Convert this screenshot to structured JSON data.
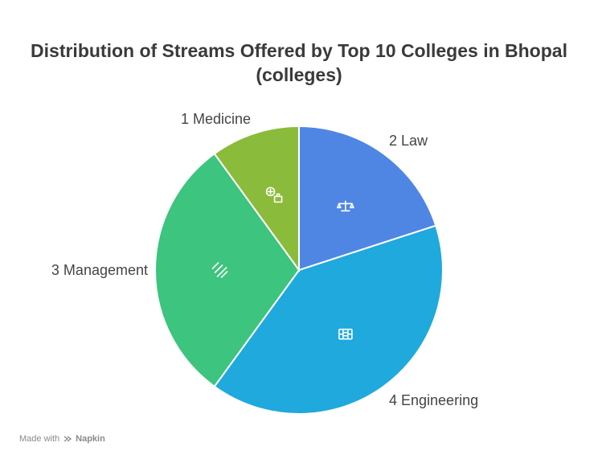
{
  "title_line1": "Distribution of Streams Offered by Top 10 Colleges in Bhopal",
  "title_line2": "(colleges)",
  "footer": {
    "made_with": "Made with",
    "brand": "Napkin"
  },
  "chart_data": {
    "type": "pie",
    "title": "Distribution of Streams Offered by Top 10 Colleges in Bhopal (colleges)",
    "start_angle_deg": 0,
    "direction": "clockwise",
    "slices": [
      {
        "label": "2 Law",
        "value": 2,
        "color": "#4f86e3",
        "icon": "scales-icon"
      },
      {
        "label": "4 Engineering",
        "value": 4,
        "color": "#1fa9dc",
        "icon": "engineering-icon"
      },
      {
        "label": "3 Management",
        "value": 3,
        "color": "#3dc47e",
        "icon": "management-icon"
      },
      {
        "label": "1 Medicine",
        "value": 1,
        "color": "#8bbb3a",
        "icon": "medicine-icon"
      }
    ]
  }
}
